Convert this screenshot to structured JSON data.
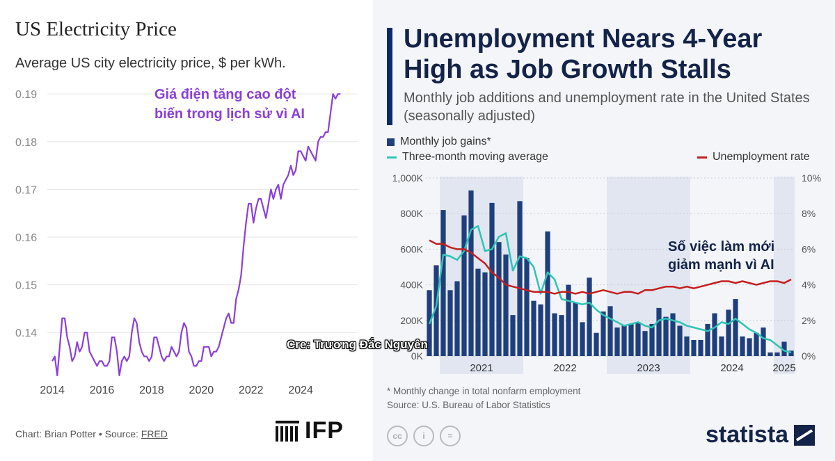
{
  "left_panel": {
    "footer_chart": "Chart: Brian Potter",
    "footer_sep": " • Source: ",
    "footer_source": "FRED",
    "logo_text": "IFP"
  },
  "right_panel": {
    "cc_icons": [
      "cc",
      "i",
      "="
    ],
    "logo_text": "statista",
    "footnote": "* Monthly change in total nonfarm employment",
    "source": "Source: U.S. Bureau of Labor Statistics"
  },
  "watermark": "Cre: Trương Đắc Nguyên",
  "colors": {
    "price_line": "#8a3fd8",
    "bars": "#1f3f7c",
    "moving_avg": "#2ec4b6",
    "unemployment": "#c41e1e",
    "navy": "#142348"
  },
  "chart_data": [
    {
      "type": "line",
      "title": "US Electricity Price",
      "subtitle": "Average US city electricity price, $ per kWh.",
      "annotation": "Giá điện tăng cao đột biến trong lịch sử vì AI",
      "xlim": [
        2013.8,
        2025.9
      ],
      "ylim": [
        0.131,
        0.1925
      ],
      "x_ticks": [
        2014,
        2016,
        2018,
        2020,
        2022,
        2024
      ],
      "y_ticks": [
        0.14,
        0.15,
        0.16,
        0.17,
        0.18,
        0.19
      ],
      "grid": true,
      "series": [
        {
          "x": [
            2014.0,
            2014.1,
            2014.2,
            2014.3,
            2014.4,
            2014.5,
            2014.6,
            2014.7,
            2014.8,
            2014.9,
            2015.0,
            2015.1,
            2015.2,
            2015.3,
            2015.4,
            2015.5,
            2015.6,
            2015.7,
            2015.8,
            2015.9,
            2016.0,
            2016.1,
            2016.2,
            2016.3,
            2016.4,
            2016.5,
            2016.6,
            2016.7,
            2016.8,
            2016.9,
            2017.0,
            2017.1,
            2017.2,
            2017.3,
            2017.4,
            2017.5,
            2017.6,
            2017.7,
            2017.8,
            2017.9,
            2018.0,
            2018.1,
            2018.2,
            2018.3,
            2018.4,
            2018.5,
            2018.6,
            2018.7,
            2018.8,
            2018.9,
            2019.0,
            2019.1,
            2019.2,
            2019.3,
            2019.4,
            2019.5,
            2019.6,
            2019.7,
            2019.8,
            2019.9,
            2020.0,
            2020.1,
            2020.2,
            2020.3,
            2020.4,
            2020.5,
            2020.6,
            2020.7,
            2020.8,
            2020.9,
            2021.0,
            2021.1,
            2021.2,
            2021.3,
            2021.4,
            2021.5,
            2021.6,
            2021.7,
            2021.8,
            2021.9,
            2022.0,
            2022.1,
            2022.2,
            2022.3,
            2022.4,
            2022.5,
            2022.6,
            2022.7,
            2022.8,
            2022.9,
            2023.0,
            2023.1,
            2023.2,
            2023.3,
            2023.4,
            2023.5,
            2023.6,
            2023.7,
            2023.8,
            2023.9,
            2024.0,
            2024.1,
            2024.2,
            2024.3,
            2024.4,
            2024.5,
            2024.6,
            2024.7,
            2024.8,
            2024.9,
            2025.0,
            2025.1,
            2025.2,
            2025.3,
            2025.4,
            2025.5,
            2025.6
          ],
          "y": [
            0.134,
            0.135,
            0.131,
            0.137,
            0.143,
            0.143,
            0.139,
            0.137,
            0.134,
            0.135,
            0.138,
            0.136,
            0.137,
            0.14,
            0.14,
            0.136,
            0.135,
            0.134,
            0.133,
            0.134,
            0.134,
            0.133,
            0.133,
            0.134,
            0.139,
            0.139,
            0.136,
            0.131,
            0.134,
            0.135,
            0.134,
            0.135,
            0.14,
            0.143,
            0.142,
            0.138,
            0.136,
            0.135,
            0.135,
            0.134,
            0.135,
            0.139,
            0.139,
            0.137,
            0.135,
            0.134,
            0.135,
            0.135,
            0.137,
            0.136,
            0.135,
            0.136,
            0.14,
            0.142,
            0.141,
            0.136,
            0.135,
            0.133,
            0.133,
            0.134,
            0.134,
            0.137,
            0.137,
            0.137,
            0.135,
            0.136,
            0.136,
            0.137,
            0.139,
            0.141,
            0.143,
            0.144,
            0.142,
            0.142,
            0.147,
            0.149,
            0.152,
            0.158,
            0.163,
            0.167,
            0.167,
            0.163,
            0.166,
            0.168,
            0.168,
            0.166,
            0.164,
            0.167,
            0.17,
            0.168,
            0.17,
            0.171,
            0.168,
            0.171,
            0.172,
            0.173,
            0.175,
            0.173,
            0.174,
            0.178,
            0.178,
            0.177,
            0.176,
            0.179,
            0.178,
            0.177,
            0.176,
            0.18,
            0.181,
            0.181,
            0.182,
            0.182,
            0.186,
            0.19,
            0.189,
            0.19,
            0.19
          ]
        }
      ]
    },
    {
      "type": "bar+line",
      "title": "Unemployment Nears 4-Year High as Job Growth Stalls",
      "subtitle": "Monthly job additions and unemployment rate in the United States (seasonally adjusted)",
      "annotation": "Số việc làm mới giảm mạnh vì AI",
      "legend": [
        "Monthly job gains*",
        "Three-month moving average",
        "Unemployment rate"
      ],
      "x_ticks": [
        "2021",
        "2022",
        "2023",
        "2024",
        "2025"
      ],
      "y_left_ticks": [
        "0K",
        "200K",
        "400K",
        "600K",
        "800K",
        "1,000K"
      ],
      "y_right_ticks": [
        "0%",
        "2%",
        "4%",
        "6%",
        "8%",
        "10%"
      ],
      "ylim_left": [
        0,
        1000
      ],
      "ylim_right": [
        0,
        10
      ],
      "start_month": "2020-11",
      "job_gains_k": [
        370,
        510,
        820,
        370,
        420,
        790,
        930,
        490,
        470,
        860,
        640,
        570,
        230,
        870,
        550,
        310,
        290,
        700,
        240,
        230,
        400,
        300,
        190,
        440,
        130,
        250,
        280,
        160,
        170,
        180,
        190,
        140,
        180,
        270,
        220,
        240,
        170,
        110,
        90,
        90,
        180,
        240,
        110,
        260,
        320,
        110,
        100,
        130,
        160,
        20,
        20,
        80,
        30
      ],
      "moving_avg_k": [
        180,
        280,
        570,
        560,
        540,
        590,
        710,
        730,
        590,
        600,
        670,
        690,
        480,
        560,
        550,
        500,
        350,
        470,
        430,
        320,
        310,
        300,
        290,
        300,
        260,
        230,
        210,
        190,
        170,
        180,
        190,
        170,
        160,
        200,
        210,
        200,
        190,
        170,
        160,
        150,
        140,
        160,
        190,
        180,
        210,
        180,
        150,
        130,
        100,
        90,
        60,
        30,
        20
      ],
      "unemployment_pct": [
        6.5,
        6.3,
        6.3,
        6.1,
        6.0,
        6.0,
        5.8,
        5.5,
        5.2,
        4.7,
        4.4,
        4.0,
        3.9,
        3.8,
        3.7,
        3.6,
        3.6,
        3.6,
        3.5,
        3.6,
        3.6,
        3.5,
        3.6,
        3.5,
        3.6,
        3.7,
        3.6,
        3.5,
        3.6,
        3.6,
        3.5,
        3.7,
        3.7,
        3.8,
        3.9,
        3.9,
        3.8,
        3.9,
        3.8,
        3.9,
        4.0,
        4.1,
        4.2,
        4.2,
        4.1,
        4.2,
        4.1,
        4.0,
        4.1,
        4.2,
        4.2,
        4.1,
        4.3
      ]
    }
  ]
}
